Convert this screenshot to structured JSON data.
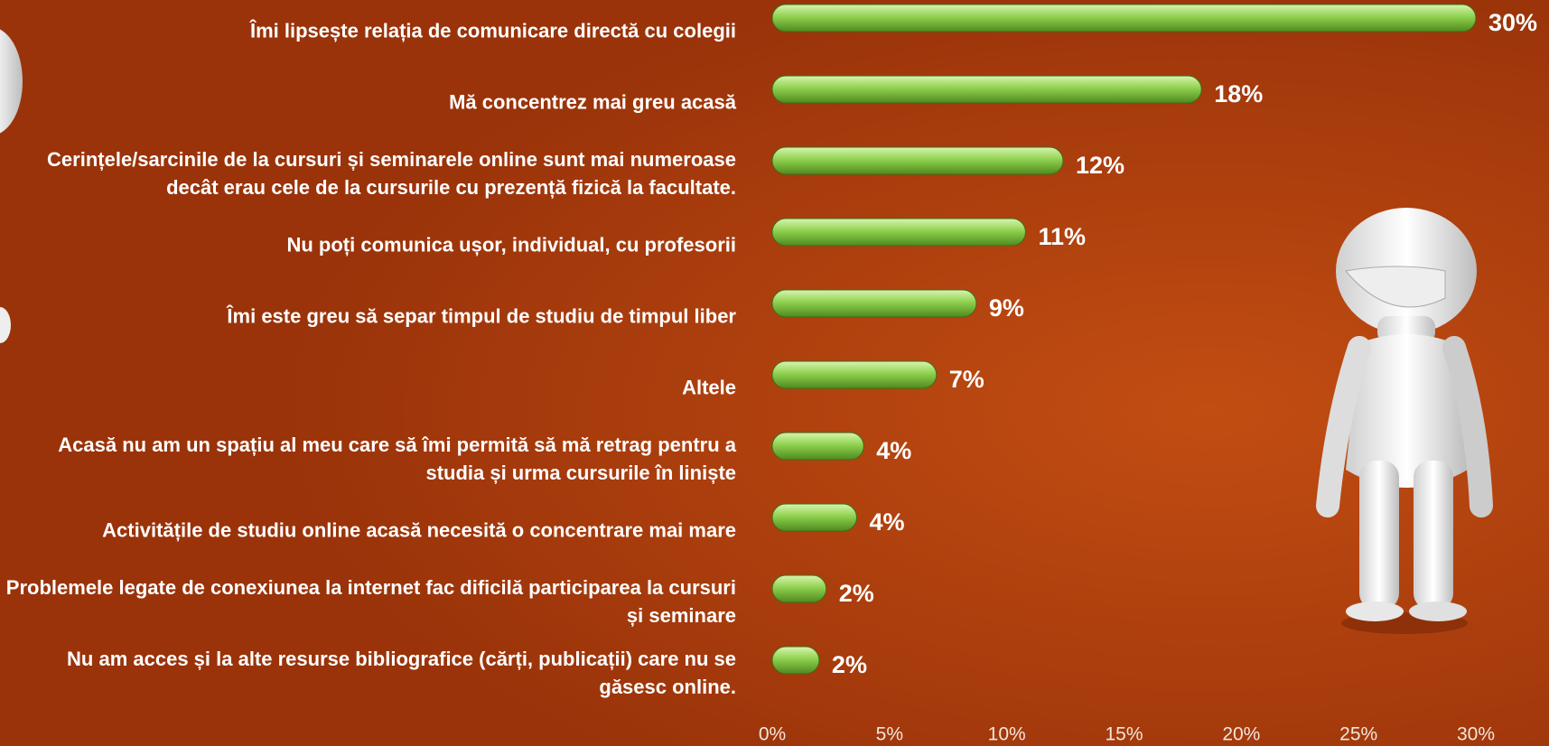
{
  "chart_data": {
    "type": "bar",
    "orientation": "horizontal",
    "categories": [
      "Îmi lipsește relația de comunicare directă cu colegii",
      "Mă concentrez mai greu acasă",
      "Cerințele/sarcinile de la cursuri și seminarele online sunt mai numeroase decât erau cele de la cursurile cu prezență fizică la facultate.",
      "Nu poți comunica ușor, individual, cu profesorii",
      "Îmi este greu să separ timpul de studiu de timpul liber",
      "Altele",
      "Acasă nu am un spațiu al meu care să îmi permită să mă retrag pentru a studia și urma cursurile în liniște",
      "Activitățile de studiu online acasă necesită o concentrare mai mare",
      "Problemele legate de conexiunea la internet fac dificilă participarea la cursuri și seminare",
      "Nu am acces și la alte resurse bibliografice (cărți, publicații) care nu se găsesc online."
    ],
    "values": [
      30.0,
      18.3,
      12.4,
      10.8,
      8.7,
      7.0,
      3.9,
      3.6,
      2.3,
      2.0
    ],
    "value_labels": [
      "30%",
      "18%",
      "12%",
      "11%",
      "9%",
      "7%",
      "4%",
      "4%",
      "2%",
      "2%"
    ],
    "color": "#8fd14f",
    "xlim": [
      0,
      30
    ],
    "xticks": [
      {
        "value": 0,
        "label": "0%"
      },
      {
        "value": 5,
        "label": "5%"
      },
      {
        "value": 10,
        "label": "10%"
      },
      {
        "value": 15,
        "label": "15%"
      },
      {
        "value": 20,
        "label": "20%"
      },
      {
        "value": 25,
        "label": "25%"
      },
      {
        "value": 30,
        "label": "30%"
      }
    ]
  }
}
